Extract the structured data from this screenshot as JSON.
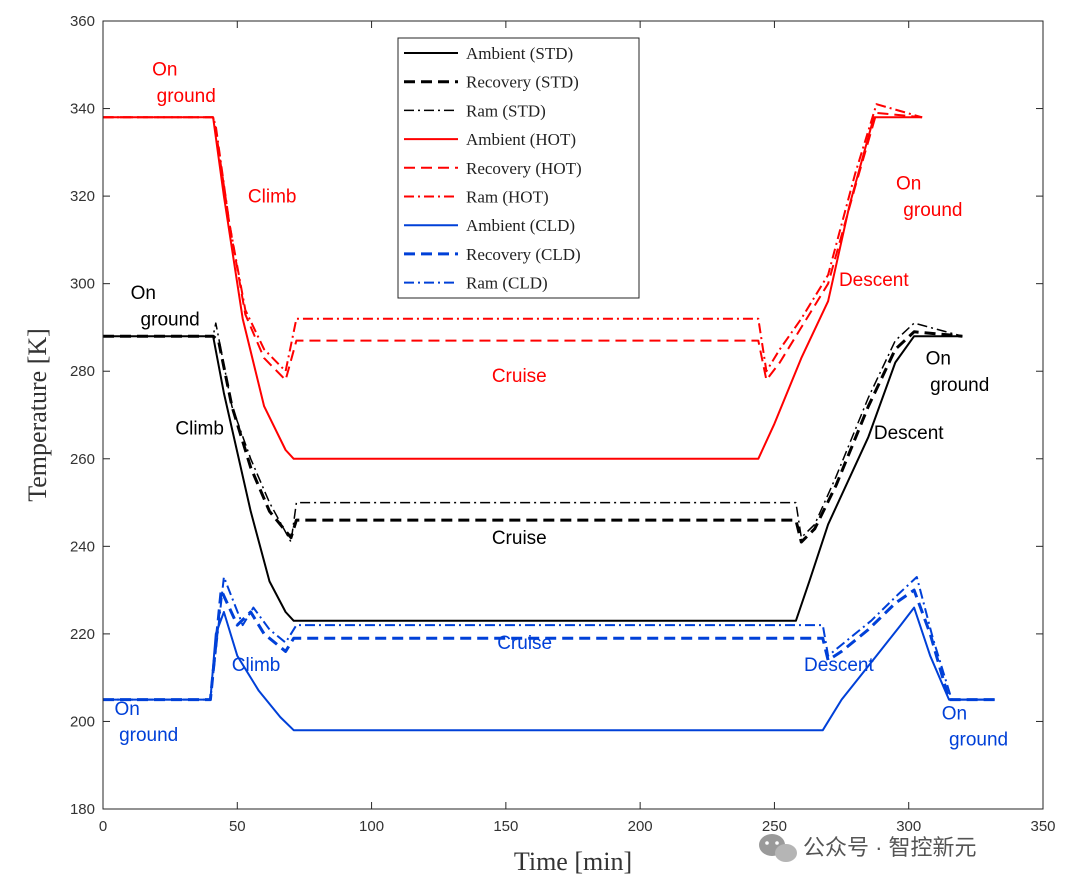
{
  "chart_data": {
    "type": "line",
    "xlabel": "Time [min]",
    "ylabel": "Temperature [K]",
    "xlim": [
      0,
      350
    ],
    "ylim": [
      180,
      360
    ],
    "xticks": [
      "0",
      "50",
      "100",
      "150",
      "200",
      "250",
      "300",
      "350"
    ],
    "yticks": [
      "180",
      "200",
      "220",
      "240",
      "260",
      "280",
      "300",
      "320",
      "340",
      "360"
    ],
    "grid": false,
    "legend_position": "top-center",
    "series": [
      {
        "name": "Ambient (STD)",
        "color": "#000000",
        "dash": "solid",
        "width": 2,
        "x": [
          0,
          41,
          45,
          55,
          62,
          68,
          71,
          258,
          263,
          270,
          285,
          295,
          302,
          320
        ],
        "y": [
          288,
          288,
          275,
          248,
          232,
          225,
          223,
          223,
          232,
          245,
          265,
          282,
          288,
          288
        ]
      },
      {
        "name": "Recovery (STD)",
        "color": "#000000",
        "dash": "dashed",
        "width": 3,
        "x": [
          0,
          41,
          43,
          48,
          55,
          62,
          70,
          72,
          258,
          260,
          265,
          273,
          285,
          295,
          302,
          320
        ],
        "y": [
          288,
          288,
          287,
          272,
          258,
          248,
          242,
          246,
          246,
          241,
          244,
          254,
          272,
          285,
          289,
          288
        ]
      },
      {
        "name": "Ram (STD)",
        "color": "#000000",
        "dash": "dashdot",
        "width": 1.5,
        "x": [
          0,
          41,
          42,
          48,
          55,
          62,
          70,
          72,
          258,
          260,
          265,
          273,
          285,
          295,
          302,
          320
        ],
        "y": [
          288,
          288,
          291,
          272,
          260,
          250,
          241,
          250,
          250,
          242,
          245,
          256,
          274,
          287,
          291,
          288
        ]
      },
      {
        "name": "Ambient (HOT)",
        "color": "#ff0000",
        "dash": "solid",
        "width": 2,
        "x": [
          0,
          41,
          45,
          52,
          60,
          68,
          71,
          244,
          250,
          260,
          270,
          278,
          287,
          305
        ],
        "y": [
          338,
          338,
          320,
          292,
          272,
          262,
          260,
          260,
          268,
          283,
          296,
          318,
          338,
          338
        ]
      },
      {
        "name": "Recovery (HOT)",
        "color": "#ff0000",
        "dash": "dashed",
        "width": 2,
        "x": [
          0,
          41,
          42,
          47,
          53,
          60,
          68,
          72,
          244,
          247,
          252,
          260,
          270,
          280,
          288,
          305
        ],
        "y": [
          338,
          338,
          335,
          314,
          293,
          283,
          278,
          287,
          287,
          278,
          282,
          290,
          300,
          322,
          339,
          338
        ]
      },
      {
        "name": "Ram (HOT)",
        "color": "#ff0000",
        "dash": "dashdot",
        "width": 2,
        "x": [
          0,
          41,
          42,
          47,
          53,
          60,
          68,
          72,
          244,
          247,
          252,
          260,
          270,
          280,
          288,
          305
        ],
        "y": [
          338,
          338,
          336,
          314,
          294,
          285,
          280,
          292,
          292,
          280,
          285,
          292,
          302,
          325,
          341,
          338
        ]
      },
      {
        "name": "Ambient (CLD)",
        "color": "#0040d8",
        "dash": "solid",
        "width": 2,
        "x": [
          0,
          40,
          42,
          45,
          50,
          58,
          66,
          71,
          268,
          275,
          288,
          297,
          302,
          308,
          315,
          332
        ],
        "y": [
          205,
          205,
          220,
          225,
          215,
          207,
          201,
          198,
          198,
          205,
          215,
          222,
          226,
          215,
          205,
          205
        ]
      },
      {
        "name": "Recovery (CLD)",
        "color": "#0040d8",
        "dash": "dashed",
        "width": 3,
        "x": [
          0,
          40,
          44,
          50,
          55,
          60,
          68,
          71,
          268,
          270,
          275,
          285,
          295,
          302,
          308,
          315,
          332
        ],
        "y": [
          205,
          205,
          230,
          222,
          225,
          220,
          216,
          219,
          219,
          214,
          216,
          221,
          227,
          230,
          220,
          205,
          205
        ]
      },
      {
        "name": "Ram (CLD)",
        "color": "#0040d8",
        "dash": "dashdot",
        "width": 2,
        "x": [
          0,
          40,
          45,
          52,
          56,
          62,
          68,
          72,
          268,
          270,
          276,
          286,
          296,
          303,
          309,
          316,
          332
        ],
        "y": [
          205,
          205,
          233,
          222,
          226,
          221,
          218,
          222,
          222,
          215,
          218,
          223,
          229,
          233,
          219,
          205,
          205
        ]
      }
    ],
    "annotations": [
      {
        "text": "On",
        "x": 23,
        "y": 347.5,
        "color": "#ff0000"
      },
      {
        "text": "ground",
        "x": 31,
        "y": 341.5,
        "color": "#ff0000"
      },
      {
        "text": "Climb",
        "x": 63,
        "y": 318.5,
        "color": "#ff0000"
      },
      {
        "text": "Cruise",
        "x": 155,
        "y": 277.5,
        "color": "#ff0000"
      },
      {
        "text": "Descent",
        "x": 287,
        "y": 299.5,
        "color": "#ff0000"
      },
      {
        "text": "On",
        "x": 300,
        "y": 321.5,
        "color": "#ff0000"
      },
      {
        "text": "ground",
        "x": 309,
        "y": 315.5,
        "color": "#ff0000"
      },
      {
        "text": "On",
        "x": 15,
        "y": 296.5,
        "color": "#000000"
      },
      {
        "text": "ground",
        "x": 25,
        "y": 290.5,
        "color": "#000000"
      },
      {
        "text": "Climb",
        "x": 36,
        "y": 265.5,
        "color": "#000000"
      },
      {
        "text": "Cruise",
        "x": 155,
        "y": 240.5,
        "color": "#000000"
      },
      {
        "text": "Descent",
        "x": 300,
        "y": 264.5,
        "color": "#000000"
      },
      {
        "text": "On",
        "x": 311,
        "y": 281.5,
        "color": "#000000"
      },
      {
        "text": "ground",
        "x": 319,
        "y": 275.5,
        "color": "#000000"
      },
      {
        "text": "Climb",
        "x": 57,
        "y": 211.5,
        "color": "#0040d8"
      },
      {
        "text": "Cruise",
        "x": 157,
        "y": 216.5,
        "color": "#0040d8"
      },
      {
        "text": "Descent",
        "x": 274,
        "y": 211.5,
        "color": "#0040d8"
      },
      {
        "text": "On",
        "x": 9,
        "y": 201.5,
        "color": "#0040d8"
      },
      {
        "text": "ground",
        "x": 17,
        "y": 195.5,
        "color": "#0040d8"
      },
      {
        "text": "On",
        "x": 317,
        "y": 200.5,
        "color": "#0040d8"
      },
      {
        "text": "ground",
        "x": 326,
        "y": 194.5,
        "color": "#0040d8"
      }
    ]
  },
  "watermark": {
    "text": "公众号 · 智控新元",
    "icon": "wechat-icon"
  }
}
